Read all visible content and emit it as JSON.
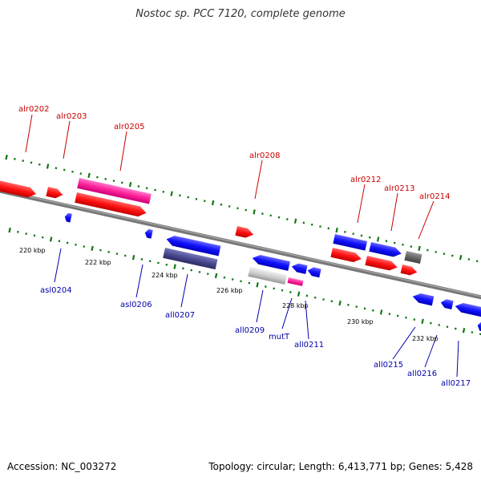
{
  "title": "Nostoc sp. PCC 7120, complete genome",
  "footer": {
    "accession": "Accession: NC_003272",
    "summary": "Topology: circular; Length: 6,413,771 bp; Genes: 5,428"
  },
  "colors": {
    "forward_label": "#cc0000",
    "reverse_label": "#0000aa",
    "tick": "#117711",
    "backbone": "#777777"
  },
  "kbp_labels": [
    "220 kbp",
    "222 kbp",
    "224 kbp",
    "226 kbp",
    "228 kbp",
    "230 kbp",
    "232 kbp"
  ],
  "labels": {
    "alr0202": "alr0202",
    "alr0203": "alr0203",
    "alr0205": "alr0205",
    "alr0208": "alr0208",
    "alr0212": "alr0212",
    "alr0213": "alr0213",
    "alr0214": "alr0214",
    "asl0204": "asl0204",
    "asl0206": "asl0206",
    "all0207": "all0207",
    "all0209": "all0209",
    "mutT": "mutT",
    "all0211": "all0211",
    "all0215": "all0215",
    "all0216": "all0216",
    "all0217": "all0217"
  }
}
